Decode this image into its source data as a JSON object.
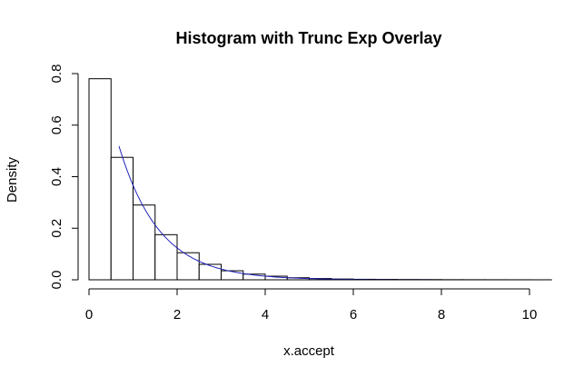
{
  "chart_data": {
    "type": "bar",
    "title": "Histogram with Trunc Exp Overlay",
    "xlabel": "x.accept",
    "ylabel": "Density",
    "xlim": [
      0,
      10.3
    ],
    "ylim": [
      0,
      0.8
    ],
    "x_ticks": [
      0,
      2,
      4,
      6,
      8,
      10
    ],
    "y_ticks": [
      0.0,
      0.2,
      0.4,
      0.6,
      0.8
    ],
    "x_tick_labels": [
      "0",
      "2",
      "4",
      "6",
      "8",
      "10"
    ],
    "y_tick_labels": [
      "0.0",
      "0.2",
      "0.4",
      "0.6",
      "0.8"
    ],
    "bin_width": 0.5,
    "bins": [
      {
        "start": 0.0,
        "end": 0.5,
        "density": 0.78
      },
      {
        "start": 0.5,
        "end": 1.0,
        "density": 0.475
      },
      {
        "start": 1.0,
        "end": 1.5,
        "density": 0.29
      },
      {
        "start": 1.5,
        "end": 2.0,
        "density": 0.175
      },
      {
        "start": 2.0,
        "end": 2.5,
        "density": 0.105
      },
      {
        "start": 2.5,
        "end": 3.0,
        "density": 0.06
      },
      {
        "start": 3.0,
        "end": 3.5,
        "density": 0.035
      },
      {
        "start": 3.5,
        "end": 4.0,
        "density": 0.022
      },
      {
        "start": 4.0,
        "end": 4.5,
        "density": 0.014
      },
      {
        "start": 4.5,
        "end": 5.0,
        "density": 0.008
      },
      {
        "start": 5.0,
        "end": 5.5,
        "density": 0.005
      },
      {
        "start": 5.5,
        "end": 6.0,
        "density": 0.003
      },
      {
        "start": 6.0,
        "end": 6.5,
        "density": 0.002
      },
      {
        "start": 6.5,
        "end": 7.0,
        "density": 0.0015
      },
      {
        "start": 7.0,
        "end": 7.5,
        "density": 0.001
      },
      {
        "start": 7.5,
        "end": 8.0,
        "density": 0.0008
      },
      {
        "start": 8.0,
        "end": 8.5,
        "density": 0.0005
      },
      {
        "start": 8.5,
        "end": 9.0,
        "density": 0.0004
      },
      {
        "start": 9.0,
        "end": 9.5,
        "density": 0.0003
      },
      {
        "start": 9.5,
        "end": 10.0,
        "density": 0.0002
      },
      {
        "start": 10.0,
        "end": 10.5,
        "density": 0.0001
      }
    ],
    "overlay": {
      "type": "line",
      "color": "#2222bb",
      "x_range": [
        0.68,
        10.0
      ],
      "formula": "exp(-x/0.92)/0.92",
      "points": [
        [
          0.68,
          0.5205
        ],
        [
          1.0,
          0.3676
        ],
        [
          1.5,
          0.2128
        ],
        [
          2.0,
          0.1232
        ],
        [
          2.5,
          0.0713
        ],
        [
          3.0,
          0.0412
        ],
        [
          3.5,
          0.0239
        ],
        [
          4.0,
          0.0138
        ],
        [
          4.5,
          0.008
        ],
        [
          5.0,
          0.0046
        ],
        [
          6.0,
          0.0016
        ],
        [
          7.0,
          0.0005
        ],
        [
          8.0,
          0.0002
        ],
        [
          9.0,
          0.0001
        ],
        [
          10.0,
          0.0
        ]
      ]
    },
    "bar_fill": "#ffffff",
    "bar_stroke": "#000000",
    "grid": false
  }
}
